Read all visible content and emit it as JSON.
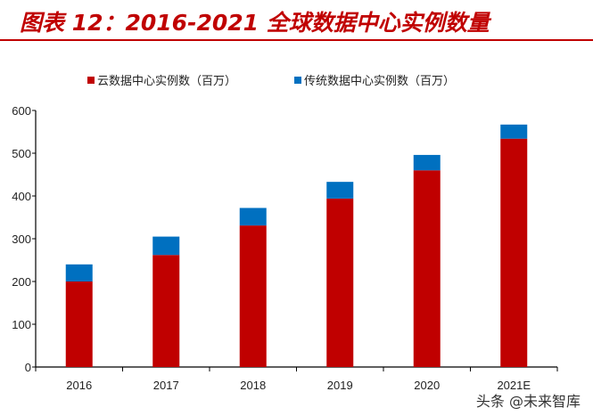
{
  "title": "图表 12：2016-2021 全球数据中心实例数量",
  "watermark": "头条 @未来智库",
  "chart_data": {
    "type": "bar",
    "stacked": true,
    "categories": [
      "2016",
      "2017",
      "2018",
      "2019",
      "2020",
      "2021E"
    ],
    "series": [
      {
        "name": "云数据中心实例数（百万）",
        "color": "#c00000",
        "values": [
          200,
          262,
          331,
          394,
          460,
          534
        ]
      },
      {
        "name": "传统数据中心实例数（百万）",
        "color": "#0070c0",
        "values": [
          40,
          43,
          41,
          39,
          36,
          33
        ]
      }
    ],
    "ylim": [
      0,
      600
    ],
    "yticks": [
      "0",
      "100",
      "200",
      "300",
      "400",
      "500",
      "600"
    ],
    "grid": false,
    "legend": "top"
  }
}
